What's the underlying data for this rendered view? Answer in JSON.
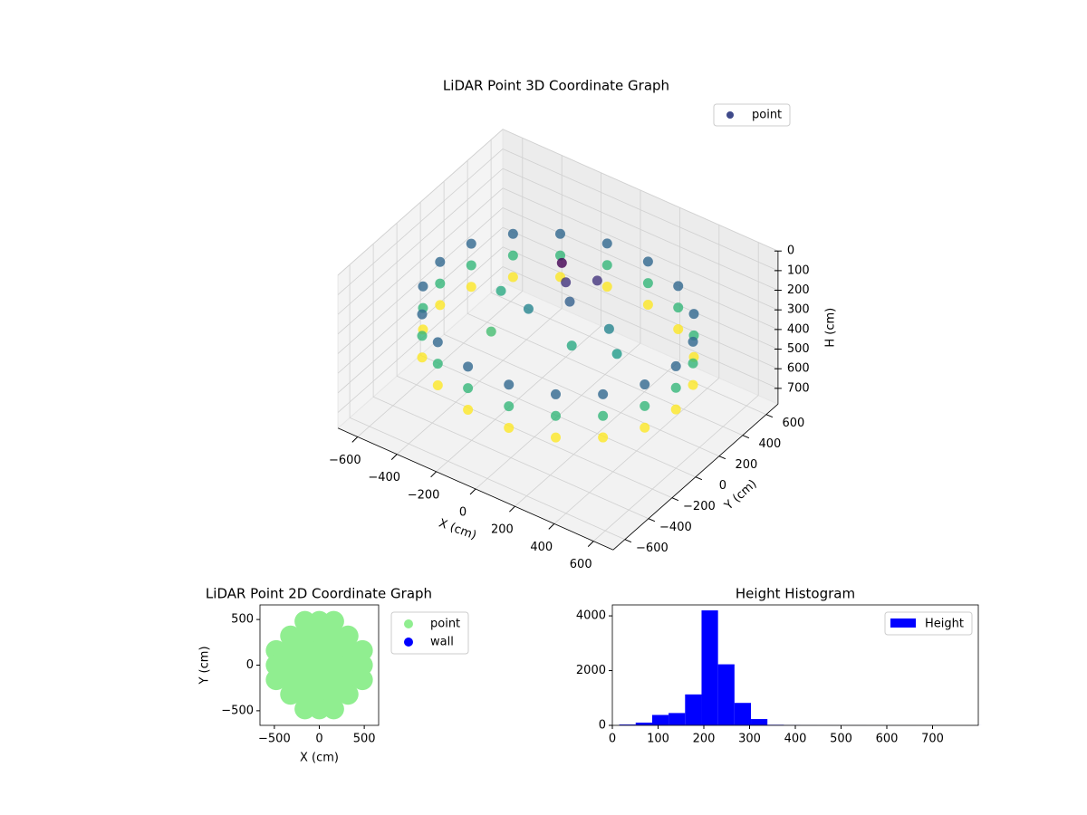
{
  "chart_data": [
    {
      "type": "scatter3d",
      "title": "LiDAR Point 3D Coordinate Graph",
      "xlabel": "X (cm)",
      "ylabel": "Y (cm)",
      "zlabel": "H (cm)",
      "xlim": [
        -700,
        700
      ],
      "ylim": [
        -700,
        700
      ],
      "zlim": [
        0,
        780
      ],
      "z_inverted": true,
      "xticks": [
        {
          "value": -600,
          "label": "−600"
        },
        {
          "value": -400,
          "label": "−400"
        },
        {
          "value": -200,
          "label": "−200"
        },
        0,
        200,
        400,
        600
      ],
      "yticks": [
        {
          "value": -600,
          "label": "−600"
        },
        {
          "value": -400,
          "label": "−400"
        },
        {
          "value": -200,
          "label": "−200"
        },
        0,
        200,
        400,
        600
      ],
      "zticks": [
        0,
        100,
        200,
        300,
        400,
        500,
        600,
        700
      ],
      "grid": true,
      "legend": "upper right",
      "cmap": "viridis",
      "series": [
        {
          "name": "point",
          "color": "#3f4a8a",
          "x": [
            600,
            564,
            460,
            300,
            104,
            -104,
            -300,
            -460,
            -564,
            -600,
            -564,
            -460,
            -300,
            -104,
            104,
            300,
            460,
            564,
            600,
            564,
            460,
            300,
            104,
            -104,
            -300,
            -460,
            -564,
            -600,
            -564,
            -460,
            -300,
            -104,
            104,
            300,
            460,
            564,
            600,
            564,
            460,
            300,
            104,
            -104,
            -300,
            -460,
            -564,
            -600,
            -564,
            -460,
            -300,
            -104,
            104,
            300,
            460,
            564,
            -100,
            -50,
            0,
            -150,
            100,
            200,
            -250,
            300,
            -350,
            50
          ],
          "y": [
            0,
            205,
            386,
            520,
            591,
            591,
            520,
            386,
            205,
            0,
            -205,
            -386,
            -520,
            -591,
            -591,
            -520,
            -386,
            -205,
            0,
            205,
            386,
            520,
            591,
            591,
            520,
            386,
            205,
            0,
            -205,
            -386,
            -520,
            -591,
            -591,
            -520,
            -386,
            -205,
            0,
            205,
            386,
            520,
            591,
            591,
            520,
            386,
            205,
            0,
            -205,
            -386,
            -520,
            -591,
            -591,
            -520,
            -386,
            -205,
            200,
            150,
            100,
            0,
            -50,
            100,
            -150,
            0,
            100,
            250
          ],
          "z": [
            260,
            260,
            260,
            260,
            260,
            260,
            260,
            260,
            260,
            260,
            260,
            260,
            260,
            260,
            260,
            260,
            260,
            260,
            370,
            370,
            370,
            370,
            370,
            370,
            370,
            370,
            370,
            370,
            370,
            370,
            370,
            370,
            370,
            370,
            370,
            370,
            480,
            480,
            480,
            480,
            480,
            480,
            480,
            480,
            480,
            480,
            480,
            480,
            480,
            480,
            480,
            480,
            480,
            480,
            150,
            200,
            250,
            300,
            350,
            300,
            380,
            330,
            350,
            200
          ]
        }
      ]
    },
    {
      "type": "scatter",
      "title": "LiDAR Point 2D Coordinate Graph",
      "xlabel": "X (cm)",
      "ylabel": "Y (cm)",
      "xlim": [
        -660,
        660
      ],
      "ylim": [
        -660,
        660
      ],
      "xticks": [
        {
          "value": -500,
          "label": "−500"
        },
        0,
        500
      ],
      "yticks": [
        {
          "value": -500,
          "label": "−500"
        },
        0,
        500
      ],
      "legend": "outside upper right",
      "series": [
        {
          "name": "point",
          "color": "#90ee90",
          "x": [
            -160,
            0,
            160,
            -320,
            -160,
            0,
            160,
            320,
            -480,
            -320,
            -160,
            0,
            160,
            320,
            480,
            -480,
            -320,
            -160,
            0,
            160,
            320,
            480,
            -480,
            -320,
            -160,
            0,
            160,
            320,
            480,
            -320,
            -160,
            0,
            160,
            320,
            -160,
            0,
            160
          ],
          "y": [
            480,
            480,
            480,
            320,
            320,
            320,
            320,
            320,
            160,
            160,
            160,
            160,
            160,
            160,
            160,
            0,
            0,
            0,
            0,
            0,
            0,
            0,
            -160,
            -160,
            -160,
            -160,
            -160,
            -160,
            -160,
            -320,
            -320,
            -320,
            -320,
            -320,
            -480,
            -480,
            -480
          ]
        },
        {
          "name": "wall",
          "color": "#0000ff",
          "x": [],
          "y": []
        }
      ]
    },
    {
      "type": "histogram",
      "title": "Height Histogram",
      "xlim": [
        0,
        800
      ],
      "ylim": [
        0,
        4400
      ],
      "xticks": [
        0,
        100,
        200,
        300,
        400,
        500,
        600,
        700
      ],
      "yticks": [
        0,
        2000,
        4000
      ],
      "legend": "upper right",
      "bins": [
        15,
        51,
        87,
        123,
        159,
        195,
        231,
        267,
        303,
        339,
        375,
        411,
        447,
        483,
        519,
        555,
        591,
        627,
        663,
        699,
        735,
        771,
        807
      ],
      "series": [
        {
          "name": "Height",
          "color": "#0000ff",
          "values": [
            30,
            100,
            380,
            450,
            1130,
            4200,
            2230,
            820,
            230,
            20,
            8,
            5,
            3,
            2,
            2,
            1,
            1,
            1,
            0,
            0,
            0,
            1
          ]
        }
      ]
    }
  ]
}
